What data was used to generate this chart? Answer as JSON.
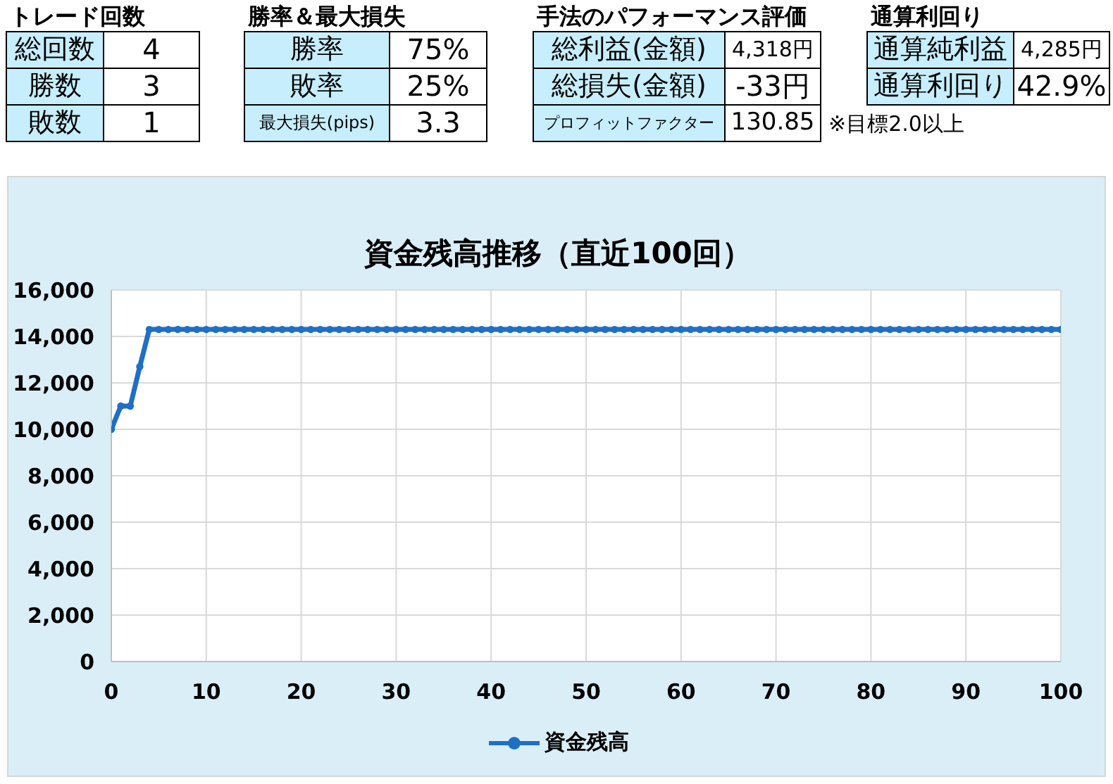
{
  "chart_data": [
    {
      "type": "other",
      "title": "トレード回数",
      "categories": [
        "総回数",
        "勝数",
        "敗数"
      ],
      "value_labels": [
        "4",
        "3",
        "1"
      ]
    },
    {
      "type": "other",
      "title": "勝率＆最大損失",
      "categories": [
        "勝率",
        "敗率",
        "最大損失(pips)"
      ],
      "value_labels": [
        "75%",
        "25%",
        "3.3"
      ]
    },
    {
      "type": "other",
      "title": "手法のパフォーマンス評価",
      "categories": [
        "総利益(金額)",
        "総損失(金額)",
        "プロフィットファクター"
      ],
      "value_labels": [
        "4,318円",
        "-33円",
        "130.85"
      ],
      "annotations": [
        "※目標2.0以上"
      ]
    },
    {
      "type": "other",
      "title": "通算利回り",
      "categories": [
        "通算純利益",
        "通算利回り"
      ],
      "value_labels": [
        "4,285円",
        "42.9%"
      ]
    },
    {
      "type": "line",
      "title": "資金残高推移（直近100回）",
      "x": [
        0,
        1,
        2,
        3,
        4,
        5,
        6,
        7,
        8,
        9,
        10,
        11,
        12,
        13,
        14,
        15,
        16,
        17,
        18,
        19,
        20,
        21,
        22,
        23,
        24,
        25,
        26,
        27,
        28,
        29,
        30,
        31,
        32,
        33,
        34,
        35,
        36,
        37,
        38,
        39,
        40,
        41,
        42,
        43,
        44,
        45,
        46,
        47,
        48,
        49,
        50,
        51,
        52,
        53,
        54,
        55,
        56,
        57,
        58,
        59,
        60,
        61,
        62,
        63,
        64,
        65,
        66,
        67,
        68,
        69,
        70,
        71,
        72,
        73,
        74,
        75,
        76,
        77,
        78,
        79,
        80,
        81,
        82,
        83,
        84,
        85,
        86,
        87,
        88,
        89,
        90,
        91,
        92,
        93,
        94,
        95,
        96,
        97,
        98,
        99,
        100
      ],
      "series": [
        {
          "name": "資金残高",
          "color": "#1f6fc5",
          "values": [
            10000,
            11000,
            11000,
            12700,
            14300,
            14300,
            14300,
            14300,
            14300,
            14300,
            14300,
            14300,
            14300,
            14300,
            14300,
            14300,
            14300,
            14300,
            14300,
            14300,
            14300,
            14300,
            14300,
            14300,
            14300,
            14300,
            14300,
            14300,
            14300,
            14300,
            14300,
            14300,
            14300,
            14300,
            14300,
            14300,
            14300,
            14300,
            14300,
            14300,
            14300,
            14300,
            14300,
            14300,
            14300,
            14300,
            14300,
            14300,
            14300,
            14300,
            14300,
            14300,
            14300,
            14300,
            14300,
            14300,
            14300,
            14300,
            14300,
            14300,
            14300,
            14300,
            14300,
            14300,
            14300,
            14300,
            14300,
            14300,
            14300,
            14300,
            14300,
            14300,
            14300,
            14300,
            14300,
            14300,
            14300,
            14300,
            14300,
            14300,
            14300,
            14300,
            14300,
            14300,
            14300,
            14300,
            14300,
            14300,
            14300,
            14300,
            14300,
            14300,
            14300,
            14300,
            14300,
            14300,
            14300,
            14300,
            14300,
            14300,
            14300
          ]
        }
      ],
      "xlim": [
        0,
        100
      ],
      "xticks": [
        0,
        10,
        20,
        30,
        40,
        50,
        60,
        70,
        80,
        90,
        100
      ],
      "ylim": [
        0,
        16000
      ],
      "yticks": [
        0,
        {
          "value": 2000,
          "label": "2,000"
        },
        {
          "value": 4000,
          "label": "4,000"
        },
        {
          "value": 6000,
          "label": "6,000"
        },
        {
          "value": 8000,
          "label": "8,000"
        },
        {
          "value": 10000,
          "label": "10,000"
        },
        {
          "value": 12000,
          "label": "12,000"
        },
        {
          "value": 14000,
          "label": "14,000"
        },
        {
          "value": 16000,
          "label": "16,000"
        }
      ],
      "grid": true,
      "legend": "bottom",
      "marker": "circle",
      "line_style": "solid"
    }
  ]
}
